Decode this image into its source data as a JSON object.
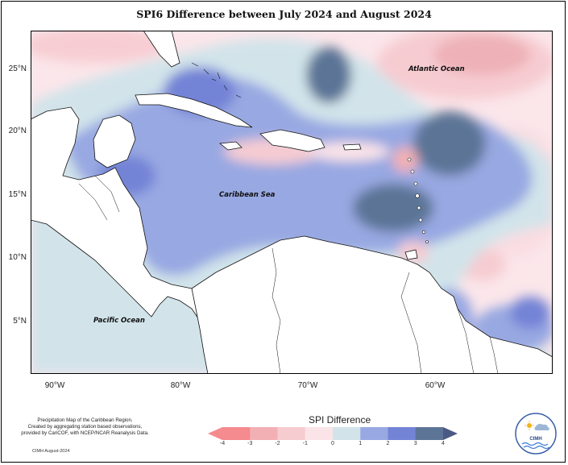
{
  "title": "SPI6 Difference between July 2024 and August 2024",
  "latitude_labels": [
    "25°N",
    "20°N",
    "15°N",
    "10°N",
    "5°N"
  ],
  "longitude_labels": [
    "90°W",
    "80°W",
    "70°W",
    "60°W"
  ],
  "region_labels": {
    "atlantic": "Atlantic Ocean",
    "caribbean": "Caribbean Sea",
    "pacific": "Pacific Ocean"
  },
  "legend": {
    "title": "SPI Difference",
    "ticks": [
      "-4",
      "-3",
      "-2",
      "-1",
      "0",
      "1",
      "2",
      "3",
      "4"
    ],
    "colors": [
      "#f58a8f",
      "#f2b0b4",
      "#f6ccd1",
      "#fbe4e8",
      "#d2e4ea",
      "#98a8e2",
      "#7383d6",
      "#5c7596",
      "#4b5a84"
    ]
  },
  "credit_lines": [
    "Precipitation Map of the Caribbean Region.",
    "Created by aggregating station based observations,",
    "provided by CariCOF, with NCEP/NCAR Reanalysis Data."
  ],
  "footer": "CIMH August-2024",
  "logo_text": "CIMH"
}
